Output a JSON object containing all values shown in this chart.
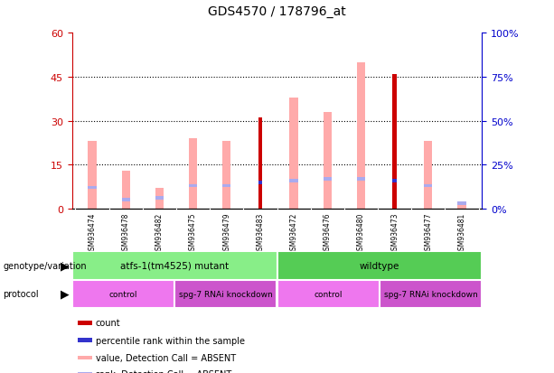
{
  "title": "GDS4570 / 178796_at",
  "samples": [
    "GSM936474",
    "GSM936478",
    "GSM936482",
    "GSM936475",
    "GSM936479",
    "GSM936483",
    "GSM936472",
    "GSM936476",
    "GSM936480",
    "GSM936473",
    "GSM936477",
    "GSM936481"
  ],
  "count_values": [
    0,
    0,
    0,
    0,
    0,
    31,
    0,
    0,
    0,
    46,
    0,
    0
  ],
  "rank_values": [
    0,
    0,
    0,
    0,
    0,
    15,
    0,
    0,
    0,
    16,
    0,
    0
  ],
  "absent_value_values": [
    23,
    13,
    7,
    24,
    23,
    0,
    38,
    33,
    50,
    0,
    23,
    0
  ],
  "absent_rank_values": [
    12,
    5,
    6,
    13,
    13,
    0,
    16,
    17,
    17,
    0,
    13,
    3
  ],
  "absent_only_value": [
    0,
    0,
    0,
    0,
    0,
    0,
    0,
    0,
    0,
    0,
    0,
    2
  ],
  "absent_only_rank": [
    0,
    0,
    0,
    0,
    0,
    0,
    0,
    0,
    0,
    0,
    0,
    3
  ],
  "ylim_left": [
    0,
    60
  ],
  "ylim_right": [
    0,
    100
  ],
  "yticks_left": [
    0,
    15,
    30,
    45,
    60
  ],
  "yticks_right": [
    0,
    25,
    50,
    75,
    100
  ],
  "ytick_labels_left": [
    "0",
    "15",
    "30",
    "45",
    "60"
  ],
  "ytick_labels_right": [
    "0%",
    "25%",
    "50%",
    "75%",
    "100%"
  ],
  "color_count": "#cc0000",
  "color_rank": "#3333cc",
  "color_absent_value": "#ffaaaa",
  "color_absent_rank": "#aaaaee",
  "genotype_groups": [
    {
      "label": "atfs-1(tm4525) mutant",
      "start": 0,
      "end": 5,
      "color": "#88ee88"
    },
    {
      "label": "wildtype",
      "start": 6,
      "end": 11,
      "color": "#55cc55"
    }
  ],
  "protocol_groups": [
    {
      "label": "control",
      "start": 0,
      "end": 2,
      "color": "#ee77ee"
    },
    {
      "label": "spg-7 RNAi knockdown",
      "start": 3,
      "end": 5,
      "color": "#cc55cc"
    },
    {
      "label": "control",
      "start": 6,
      "end": 8,
      "color": "#ee77ee"
    },
    {
      "label": "spg-7 RNAi knockdown",
      "start": 9,
      "end": 11,
      "color": "#cc55cc"
    }
  ],
  "legend_items": [
    {
      "label": "count",
      "color": "#cc0000"
    },
    {
      "label": "percentile rank within the sample",
      "color": "#3333cc"
    },
    {
      "label": "value, Detection Call = ABSENT",
      "color": "#ffaaaa"
    },
    {
      "label": "rank, Detection Call = ABSENT",
      "color": "#aaaaee"
    }
  ],
  "left_axis_color": "#cc0000",
  "right_axis_color": "#0000cc",
  "bg_color": "#ffffff",
  "grid_color": "#000000",
  "gray_bg": "#cccccc"
}
